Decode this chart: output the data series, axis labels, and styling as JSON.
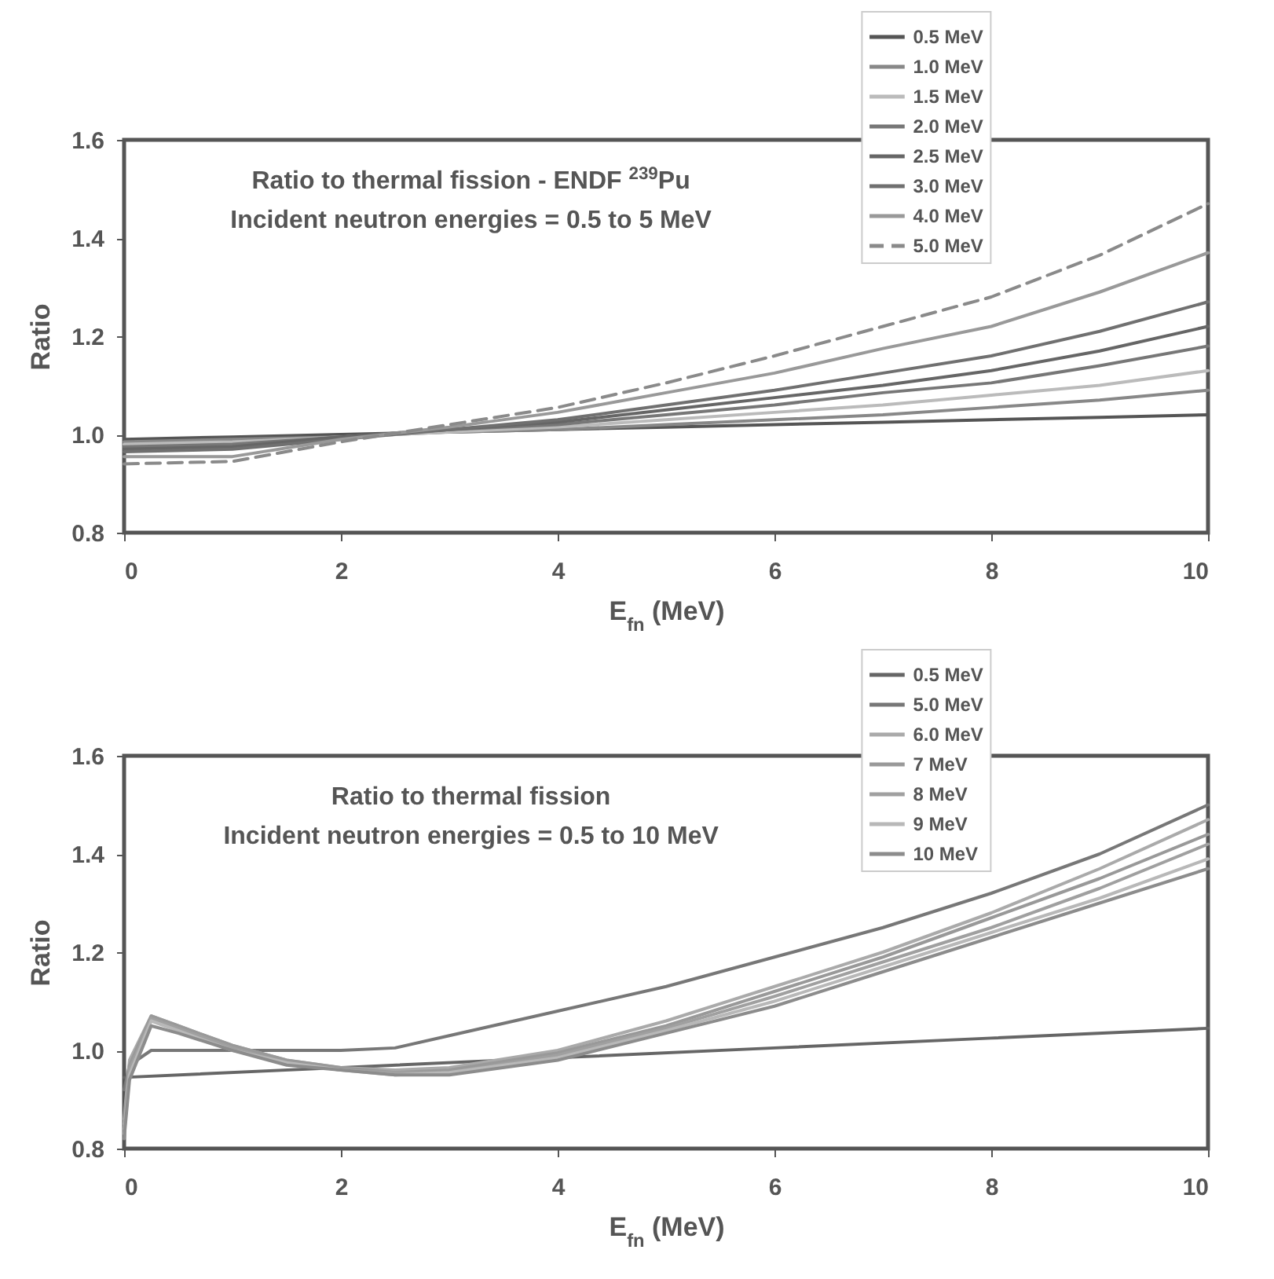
{
  "chart_data": [
    {
      "type": "line",
      "ylabel": "Ratio",
      "xlabel": "E$_{fn}$ (MeV)",
      "annotations": [
        "Ratio to thermal fission - ENDF $^{239}$Pu",
        "Incident neutron energies = 0.5 to 5 MeV"
      ],
      "xlim": [
        0,
        10
      ],
      "xticks": [
        0,
        2,
        4,
        6,
        8,
        10
      ],
      "ylim": [
        0.8,
        1.6
      ],
      "yticks": [
        0.8,
        {
          "value": 1,
          "label": "1.0"
        },
        1.2,
        1.4,
        1.6
      ],
      "legend": "top right",
      "line_style": "solid",
      "x": [
        0,
        1,
        2,
        3,
        4,
        5,
        6,
        7,
        8,
        9,
        10
      ],
      "series": [
        {
          "name": "0.5 MeV",
          "color": "#555555",
          "values": [
            0.99,
            0.995,
            1.0,
            1.005,
            1.01,
            1.015,
            1.02,
            1.025,
            1.03,
            1.035,
            1.04
          ]
        },
        {
          "name": "1.0 MeV",
          "color": "#888888",
          "values": [
            0.985,
            0.99,
            0.995,
            1.005,
            1.01,
            1.02,
            1.03,
            1.04,
            1.055,
            1.07,
            1.09
          ]
        },
        {
          "name": "1.5 MeV",
          "color": "#bbbbbb",
          "values": [
            0.98,
            0.985,
            0.995,
            1.005,
            1.015,
            1.03,
            1.045,
            1.06,
            1.08,
            1.1,
            1.13
          ]
        },
        {
          "name": "2.0 MeV",
          "color": "#777777",
          "values": [
            0.975,
            0.98,
            0.995,
            1.01,
            1.02,
            1.04,
            1.06,
            1.085,
            1.105,
            1.14,
            1.18
          ]
        },
        {
          "name": "2.5 MeV",
          "color": "#666666",
          "values": [
            0.97,
            0.975,
            0.995,
            1.01,
            1.025,
            1.05,
            1.075,
            1.1,
            1.13,
            1.17,
            1.22
          ]
        },
        {
          "name": "3.0 MeV",
          "color": "#707070",
          "values": [
            0.965,
            0.97,
            0.99,
            1.01,
            1.03,
            1.06,
            1.09,
            1.125,
            1.16,
            1.21,
            1.27
          ]
        },
        {
          "name": "4.0 MeV",
          "color": "#999999",
          "values": [
            0.955,
            0.955,
            0.99,
            1.015,
            1.045,
            1.085,
            1.125,
            1.175,
            1.22,
            1.29,
            1.37
          ]
        },
        {
          "name": "5.0 MeV",
          "color": "#8a8a8a",
          "line_style": "dashed",
          "values": [
            0.94,
            0.945,
            0.985,
            1.02,
            1.055,
            1.105,
            1.16,
            1.22,
            1.28,
            1.365,
            1.47
          ]
        }
      ]
    },
    {
      "type": "line",
      "ylabel": "Ratio",
      "xlabel": "E$_{fn}$ (MeV)",
      "annotations": [
        "Ratio to thermal fission",
        "Incident neutron energies = 0.5 to 10 MeV"
      ],
      "xlim": [
        0,
        10
      ],
      "xticks": [
        0,
        2,
        4,
        6,
        8,
        10
      ],
      "ylim": [
        0.8,
        1.6
      ],
      "yticks": [
        0.8,
        {
          "value": 1,
          "label": "1.0"
        },
        1.2,
        1.4,
        1.6
      ],
      "legend": "top right",
      "line_style": "solid",
      "x": [
        0,
        0.05,
        0.25,
        0.5,
        1,
        1.5,
        2,
        2.5,
        3,
        4,
        5,
        6,
        7,
        8,
        9,
        10
      ],
      "series": [
        {
          "name": "0.5 MeV",
          "color": "#666666",
          "x": [
            0,
            2,
            4,
            6,
            8,
            10
          ],
          "values": [
            0.945,
            0.965,
            0.985,
            1.005,
            1.025,
            1.045
          ]
        },
        {
          "name": "5.0 MeV",
          "color": "#777777",
          "values": [
            0.92,
            0.97,
            1.0,
            1.0,
            1.0,
            1.0,
            1.0,
            1.005,
            1.03,
            1.08,
            1.13,
            1.19,
            1.25,
            1.32,
            1.4,
            1.5
          ]
        },
        {
          "name": "6.0 MeV",
          "color": "#aaaaaa",
          "values": [
            0.86,
            0.98,
            1.07,
            1.05,
            1.01,
            0.98,
            0.965,
            0.96,
            0.965,
            1.0,
            1.06,
            1.13,
            1.2,
            1.28,
            1.37,
            1.47
          ]
        },
        {
          "name": "7 MeV",
          "color": "#999999",
          "values": [
            0.85,
            0.97,
            1.07,
            1.05,
            1.01,
            0.98,
            0.965,
            0.955,
            0.96,
            0.995,
            1.05,
            1.12,
            1.19,
            1.27,
            1.35,
            1.44
          ]
        },
        {
          "name": "8 MeV",
          "color": "#a0a0a0",
          "values": [
            0.84,
            0.96,
            1.065,
            1.045,
            1.005,
            0.975,
            0.96,
            0.955,
            0.955,
            0.99,
            1.045,
            1.11,
            1.18,
            1.25,
            1.33,
            1.42
          ]
        },
        {
          "name": "9 MeV",
          "color": "#b8b8b8",
          "values": [
            0.83,
            0.95,
            1.06,
            1.04,
            1.0,
            0.975,
            0.96,
            0.95,
            0.955,
            0.985,
            1.04,
            1.1,
            1.17,
            1.24,
            1.31,
            1.39
          ]
        },
        {
          "name": "10 MeV",
          "color": "#8c8c8c",
          "values": [
            0.82,
            0.94,
            1.05,
            1.035,
            1.0,
            0.97,
            0.96,
            0.95,
            0.95,
            0.98,
            1.035,
            1.09,
            1.16,
            1.23,
            1.3,
            1.37
          ]
        }
      ]
    }
  ]
}
